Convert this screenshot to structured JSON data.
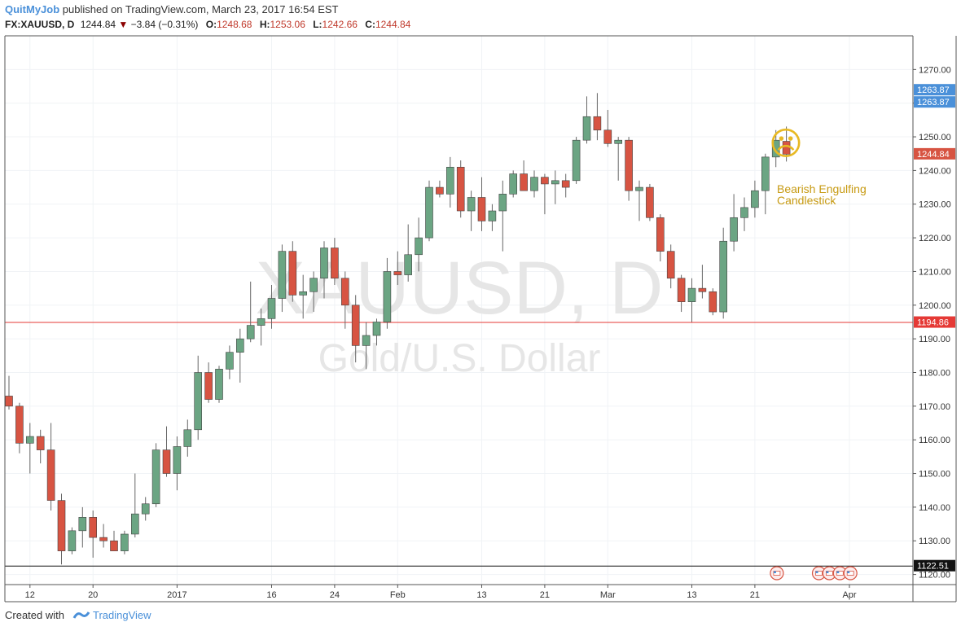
{
  "header": {
    "author": "QuitMyJob",
    "published": "published on TradingView.com, March 23, 2017 16:54 EST",
    "symbol": "FX:XAUUSD, D",
    "last": "1244.84",
    "change": "−3.84 (−0.31%)",
    "open_label": "O:",
    "open": "1248.68",
    "high_label": "H:",
    "high": "1253.06",
    "low_label": "L:",
    "low": "1242.66",
    "close_label": "C:",
    "close": "1244.84"
  },
  "watermark": {
    "symbol": "XAUUSD, D",
    "name": "Gold/U.S. Dollar"
  },
  "annotation": {
    "line1": "Bearish Engulfing",
    "line2": "Candlestick",
    "emoji": "☹"
  },
  "footer": {
    "created_with": "Created with",
    "brand": "TradingView"
  },
  "colors": {
    "up": "#6ba583",
    "down": "#d75442",
    "accent": "#4a90d9",
    "hline": "#e53935",
    "annotation": "#d4a017"
  },
  "chart_data": {
    "type": "candlestick",
    "ylim": [
      1117,
      1280
    ],
    "y_ticks": [
      1120,
      1130,
      1140,
      1150,
      1160,
      1170,
      1180,
      1190,
      1200,
      1210,
      1220,
      1230,
      1240,
      1250,
      1260,
      1270
    ],
    "x_ticks": [
      {
        "label": "12",
        "bar": 2
      },
      {
        "label": "20",
        "bar": 8
      },
      {
        "label": "2017",
        "bar": 16
      },
      {
        "label": "16",
        "bar": 25
      },
      {
        "label": "24",
        "bar": 31
      },
      {
        "label": "Feb",
        "bar": 37
      },
      {
        "label": "13",
        "bar": 45
      },
      {
        "label": "21",
        "bar": 51
      },
      {
        "label": "Mar",
        "bar": 57
      },
      {
        "label": "13",
        "bar": 65
      },
      {
        "label": "21",
        "bar": 71
      },
      {
        "label": "Apr",
        "bar": 80
      }
    ],
    "price_labels": [
      {
        "value": 1263.87,
        "label": "1263.87",
        "color": "#4a90d9"
      },
      {
        "value": 1263.87,
        "label": "1263.87",
        "color": "#4a90d9"
      },
      {
        "value": 1244.84,
        "label": "1244.84",
        "color": "#d75442"
      },
      {
        "value": 1194.86,
        "label": "1194.86",
        "color": "#e53935"
      },
      {
        "value": 1122.51,
        "label": "1122.51",
        "color": "#111111"
      }
    ],
    "horizontal_lines": [
      {
        "value": 1194.86,
        "color": "#e53935"
      },
      {
        "value": 1122.51,
        "color": "#111111"
      }
    ],
    "candles": [
      {
        "o": 1173,
        "h": 1179,
        "l": 1169,
        "c": 1170
      },
      {
        "o": 1170,
        "h": 1171,
        "l": 1156,
        "c": 1159
      },
      {
        "o": 1159,
        "h": 1165,
        "l": 1150,
        "c": 1161
      },
      {
        "o": 1161,
        "h": 1163,
        "l": 1153,
        "c": 1157
      },
      {
        "o": 1157,
        "h": 1165,
        "l": 1139,
        "c": 1142
      },
      {
        "o": 1142,
        "h": 1144,
        "l": 1123,
        "c": 1127
      },
      {
        "o": 1127,
        "h": 1134,
        "l": 1126,
        "c": 1133
      },
      {
        "o": 1133,
        "h": 1140,
        "l": 1128,
        "c": 1137
      },
      {
        "o": 1137,
        "h": 1139,
        "l": 1125,
        "c": 1131
      },
      {
        "o": 1131,
        "h": 1135,
        "l": 1128,
        "c": 1130
      },
      {
        "o": 1130,
        "h": 1133,
        "l": 1127,
        "c": 1127
      },
      {
        "o": 1127,
        "h": 1133,
        "l": 1126,
        "c": 1132
      },
      {
        "o": 1132,
        "h": 1150,
        "l": 1131,
        "c": 1138
      },
      {
        "o": 1138,
        "h": 1143,
        "l": 1136,
        "c": 1141
      },
      {
        "o": 1141,
        "h": 1159,
        "l": 1140,
        "c": 1157
      },
      {
        "o": 1157,
        "h": 1164,
        "l": 1149,
        "c": 1150
      },
      {
        "o": 1150,
        "h": 1161,
        "l": 1145,
        "c": 1158
      },
      {
        "o": 1158,
        "h": 1166,
        "l": 1155,
        "c": 1163
      },
      {
        "o": 1163,
        "h": 1185,
        "l": 1160,
        "c": 1180
      },
      {
        "o": 1180,
        "h": 1183,
        "l": 1171,
        "c": 1172
      },
      {
        "o": 1172,
        "h": 1182,
        "l": 1171,
        "c": 1181
      },
      {
        "o": 1181,
        "h": 1188,
        "l": 1178,
        "c": 1186
      },
      {
        "o": 1186,
        "h": 1193,
        "l": 1177,
        "c": 1190
      },
      {
        "o": 1190,
        "h": 1207,
        "l": 1189,
        "c": 1194
      },
      {
        "o": 1194,
        "h": 1199,
        "l": 1188,
        "c": 1196
      },
      {
        "o": 1196,
        "h": 1206,
        "l": 1193,
        "c": 1202
      },
      {
        "o": 1202,
        "h": 1218,
        "l": 1198,
        "c": 1216
      },
      {
        "o": 1216,
        "h": 1219,
        "l": 1201,
        "c": 1203
      },
      {
        "o": 1203,
        "h": 1209,
        "l": 1196,
        "c": 1204
      },
      {
        "o": 1204,
        "h": 1210,
        "l": 1198,
        "c": 1208
      },
      {
        "o": 1208,
        "h": 1219,
        "l": 1202,
        "c": 1217
      },
      {
        "o": 1217,
        "h": 1220,
        "l": 1206,
        "c": 1208
      },
      {
        "o": 1208,
        "h": 1210,
        "l": 1193,
        "c": 1200
      },
      {
        "o": 1200,
        "h": 1203,
        "l": 1183,
        "c": 1188
      },
      {
        "o": 1188,
        "h": 1195,
        "l": 1181,
        "c": 1191
      },
      {
        "o": 1191,
        "h": 1196,
        "l": 1188,
        "c": 1195
      },
      {
        "o": 1195,
        "h": 1214,
        "l": 1193,
        "c": 1210
      },
      {
        "o": 1210,
        "h": 1216,
        "l": 1206,
        "c": 1209
      },
      {
        "o": 1209,
        "h": 1224,
        "l": 1207,
        "c": 1215
      },
      {
        "o": 1215,
        "h": 1226,
        "l": 1210,
        "c": 1220
      },
      {
        "o": 1220,
        "h": 1237,
        "l": 1219,
        "c": 1235
      },
      {
        "o": 1235,
        "h": 1237,
        "l": 1232,
        "c": 1233
      },
      {
        "o": 1233,
        "h": 1244,
        "l": 1229,
        "c": 1241
      },
      {
        "o": 1241,
        "h": 1243,
        "l": 1226,
        "c": 1228
      },
      {
        "o": 1228,
        "h": 1234,
        "l": 1222,
        "c": 1232
      },
      {
        "o": 1232,
        "h": 1238,
        "l": 1222,
        "c": 1225
      },
      {
        "o": 1225,
        "h": 1230,
        "l": 1222,
        "c": 1228
      },
      {
        "o": 1228,
        "h": 1237,
        "l": 1216,
        "c": 1233
      },
      {
        "o": 1233,
        "h": 1240,
        "l": 1232,
        "c": 1239
      },
      {
        "o": 1239,
        "h": 1243,
        "l": 1234,
        "c": 1234
      },
      {
        "o": 1234,
        "h": 1240,
        "l": 1232,
        "c": 1238
      },
      {
        "o": 1238,
        "h": 1239,
        "l": 1227,
        "c": 1236
      },
      {
        "o": 1236,
        "h": 1240,
        "l": 1230,
        "c": 1237
      },
      {
        "o": 1237,
        "h": 1239,
        "l": 1232,
        "c": 1235
      },
      {
        "o": 1237,
        "h": 1250,
        "l": 1236,
        "c": 1249
      },
      {
        "o": 1249,
        "h": 1262,
        "l": 1248,
        "c": 1256
      },
      {
        "o": 1256,
        "h": 1263,
        "l": 1249,
        "c": 1252
      },
      {
        "o": 1252,
        "h": 1258,
        "l": 1247,
        "c": 1248
      },
      {
        "o": 1248,
        "h": 1250,
        "l": 1237,
        "c": 1249
      },
      {
        "o": 1249,
        "h": 1250,
        "l": 1231,
        "c": 1234
      },
      {
        "o": 1234,
        "h": 1237,
        "l": 1225,
        "c": 1235
      },
      {
        "o": 1235,
        "h": 1236,
        "l": 1225,
        "c": 1226
      },
      {
        "o": 1226,
        "h": 1227,
        "l": 1213,
        "c": 1216
      },
      {
        "o": 1216,
        "h": 1218,
        "l": 1205,
        "c": 1208
      },
      {
        "o": 1208,
        "h": 1209,
        "l": 1198,
        "c": 1201
      },
      {
        "o": 1201,
        "h": 1208,
        "l": 1195,
        "c": 1205
      },
      {
        "o": 1205,
        "h": 1212,
        "l": 1202,
        "c": 1204
      },
      {
        "o": 1204,
        "h": 1205,
        "l": 1197,
        "c": 1198
      },
      {
        "o": 1198,
        "h": 1223,
        "l": 1196,
        "c": 1219
      },
      {
        "o": 1219,
        "h": 1233,
        "l": 1216,
        "c": 1226
      },
      {
        "o": 1226,
        "h": 1232,
        "l": 1222,
        "c": 1229
      },
      {
        "o": 1229,
        "h": 1237,
        "l": 1226,
        "c": 1234
      },
      {
        "o": 1234,
        "h": 1245,
        "l": 1227,
        "c": 1244
      },
      {
        "o": 1244,
        "h": 1252,
        "l": 1241,
        "c": 1249
      },
      {
        "o": 1248.68,
        "h": 1253.06,
        "l": 1242.66,
        "c": 1244.84
      }
    ],
    "event_markers": [
      {
        "bar": 71
      },
      {
        "bar": 75
      },
      {
        "bar": 76
      },
      {
        "bar": 77
      },
      {
        "bar": 78
      }
    ]
  }
}
